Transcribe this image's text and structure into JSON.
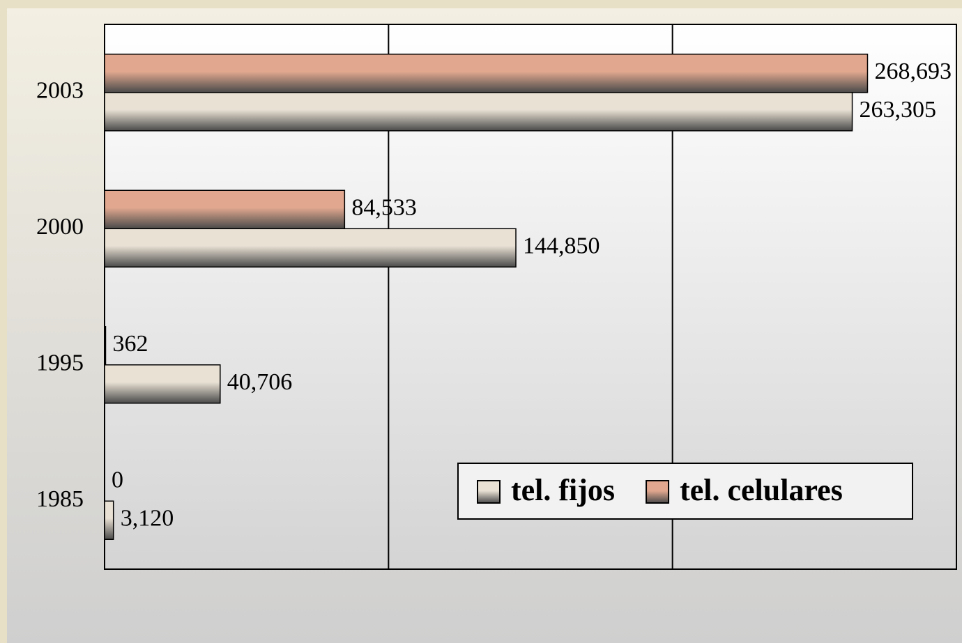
{
  "chart_data": {
    "type": "hbar",
    "categories": [
      "1985",
      "1995",
      "2000",
      "2003"
    ],
    "series": [
      {
        "name": "tel. fijos",
        "color": "#e9e1d4",
        "values": [
          3120,
          40706,
          144850,
          263305
        ],
        "value_labels": [
          "3,120",
          "40,706",
          "144,850",
          "263,305"
        ]
      },
      {
        "name": "tel. celulares",
        "color": "#e2a88f",
        "values": [
          0,
          362,
          84533,
          268693
        ],
        "value_labels": [
          "0",
          "362",
          "84,533",
          "268,693"
        ]
      }
    ],
    "xlim": [
      0,
      300000
    ],
    "xticks": [
      0,
      100000,
      200000,
      300000
    ],
    "grid": true
  }
}
